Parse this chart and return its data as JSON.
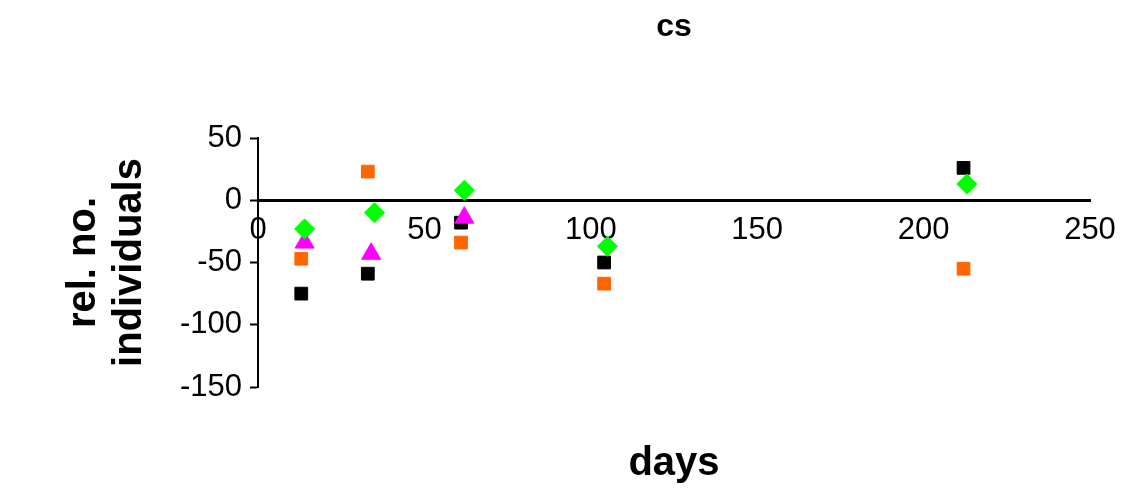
{
  "chart_data": {
    "type": "scatter",
    "title": "cs",
    "xlabel": "days",
    "ylabel": "rel. no. individuals",
    "xlim": [
      0,
      250
    ],
    "xticks": [
      0,
      50,
      100,
      150,
      200,
      250
    ],
    "ylim": [
      -150,
      50
    ],
    "yticks": [
      -150,
      -100,
      -50,
      0,
      50
    ],
    "grid": false,
    "legend": false,
    "series": [
      {
        "color": "#ff6600",
        "marker": "square",
        "x": [
          13,
          33,
          61,
          104,
          212
        ],
        "values": [
          -47,
          23,
          -34,
          -67,
          -55
        ]
      },
      {
        "color": "#00ff00",
        "marker": "diamond",
        "x": [
          14,
          35,
          62,
          105,
          213
        ],
        "values": [
          -23,
          -10,
          8,
          -37,
          13
        ]
      },
      {
        "color": "#ff00ff",
        "marker": "triangle",
        "x": [
          14,
          34,
          62
        ],
        "values": [
          -34,
          -43,
          -14
        ]
      },
      {
        "color": "#000000",
        "marker": "square",
        "x": [
          13,
          33,
          61,
          104,
          212
        ],
        "values": [
          -75,
          -59,
          -18,
          -50,
          26
        ]
      }
    ]
  }
}
